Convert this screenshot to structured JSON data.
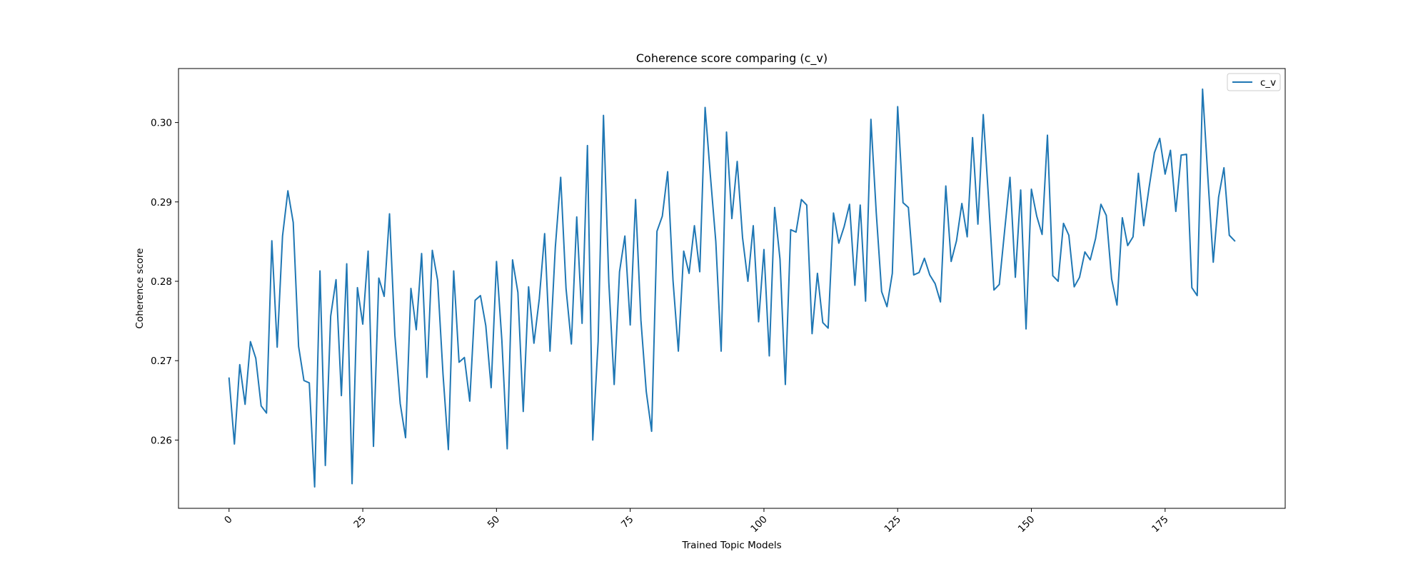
{
  "chart_data": {
    "type": "line",
    "title": "Coherence score comparing (c_v)",
    "xlabel": "Trained Topic Models",
    "ylabel": "Coherence score",
    "xlim": [
      -9.45,
      197.45
    ],
    "ylim": [
      0.2514,
      0.3068
    ],
    "xticks": [
      0,
      25,
      50,
      75,
      100,
      125,
      150,
      175
    ],
    "yticks": [
      0.26,
      0.27,
      0.28,
      0.29,
      0.3
    ],
    "ytick_labels": [
      "0.26",
      "0.27",
      "0.28",
      "0.29",
      "0.30"
    ],
    "grid": false,
    "legend_position": "upper right",
    "series": [
      {
        "name": "c_v",
        "color": "#1f77b4",
        "x_start": 0,
        "x_step": 1,
        "values": [
          0.2678,
          0.2595,
          0.2695,
          0.2645,
          0.2724,
          0.2703,
          0.2643,
          0.2634,
          0.2851,
          0.2717,
          0.2857,
          0.2914,
          0.2874,
          0.2718,
          0.2675,
          0.2672,
          0.2541,
          0.2813,
          0.2568,
          0.2756,
          0.2802,
          0.2656,
          0.2822,
          0.2545,
          0.2792,
          0.2746,
          0.2838,
          0.2592,
          0.2804,
          0.2781,
          0.2885,
          0.2732,
          0.2646,
          0.2603,
          0.2791,
          0.2739,
          0.2835,
          0.2679,
          0.2839,
          0.2801,
          0.2683,
          0.2588,
          0.2813,
          0.2698,
          0.2704,
          0.2649,
          0.2776,
          0.2782,
          0.2744,
          0.2666,
          0.2825,
          0.2726,
          0.2589,
          0.2827,
          0.2786,
          0.2636,
          0.2793,
          0.2722,
          0.2778,
          0.286,
          0.2712,
          0.2843,
          0.2931,
          0.2791,
          0.2721,
          0.2881,
          0.2747,
          0.2971,
          0.26,
          0.2724,
          0.3009,
          0.2799,
          0.267,
          0.2812,
          0.2857,
          0.2745,
          0.2903,
          0.2751,
          0.2661,
          0.2611,
          0.2863,
          0.2882,
          0.2938,
          0.2801,
          0.2712,
          0.2838,
          0.281,
          0.287,
          0.2812,
          0.3019,
          0.2932,
          0.285,
          0.2712,
          0.2988,
          0.2879,
          0.2951,
          0.2855,
          0.28,
          0.287,
          0.2749,
          0.284,
          0.2706,
          0.2893,
          0.2828,
          0.267,
          0.2865,
          0.2862,
          0.2903,
          0.2896,
          0.2734,
          0.281,
          0.2748,
          0.2741,
          0.2886,
          0.2848,
          0.2869,
          0.2897,
          0.2795,
          0.2896,
          0.2775,
          0.3004,
          0.2886,
          0.2787,
          0.2768,
          0.281,
          0.302,
          0.2899,
          0.2893,
          0.2808,
          0.2811,
          0.2829,
          0.2808,
          0.2797,
          0.2774,
          0.292,
          0.2825,
          0.2851,
          0.2898,
          0.2856,
          0.2981,
          0.2872,
          0.301,
          0.2903,
          0.2789,
          0.2796,
          0.2864,
          0.2931,
          0.2805,
          0.2915,
          0.274,
          0.2916,
          0.2882,
          0.2859,
          0.2984,
          0.2807,
          0.28,
          0.2873,
          0.2858,
          0.2793,
          0.2805,
          0.2837,
          0.2827,
          0.2854,
          0.2897,
          0.2883,
          0.2803,
          0.277,
          0.288,
          0.2845,
          0.2856,
          0.2936,
          0.287,
          0.2918,
          0.2962,
          0.298,
          0.2935,
          0.2965,
          0.2888,
          0.2959,
          0.296,
          0.2792,
          0.2782,
          0.3042,
          0.293,
          0.2824,
          0.2906,
          0.2943,
          0.2858,
          0.2851
        ]
      }
    ]
  }
}
